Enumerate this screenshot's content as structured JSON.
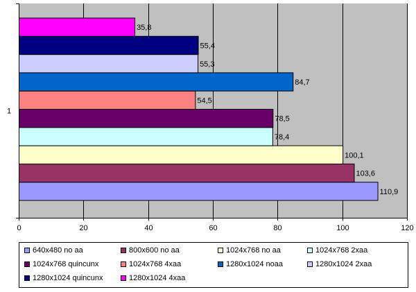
{
  "chart_data": {
    "type": "bar",
    "orientation": "horizontal",
    "categories": [
      "1"
    ],
    "xlim": [
      0,
      120
    ],
    "xticks": [
      0,
      20,
      40,
      60,
      80,
      100,
      120
    ],
    "grid": true,
    "legend_position": "bottom",
    "series": [
      {
        "name": "640x480 no aa",
        "values": [
          110.9
        ],
        "label": "110,9",
        "color": "#9999ff"
      },
      {
        "name": "800x600 no aa",
        "values": [
          103.6
        ],
        "label": "103,6",
        "color": "#993366"
      },
      {
        "name": "1024x768 no aa",
        "values": [
          100.1
        ],
        "label": "100,1",
        "color": "#ffffcc"
      },
      {
        "name": "1024x768 2xaa",
        "values": [
          78.4
        ],
        "label": "78,4",
        "color": "#ccffff"
      },
      {
        "name": "1024x768 quincunx",
        "values": [
          78.5
        ],
        "label": "78,5",
        "color": "#660066"
      },
      {
        "name": "1024x768 4xaa",
        "values": [
          54.5
        ],
        "label": "54,5",
        "color": "#ff8080"
      },
      {
        "name": "1280x1024 noaa",
        "values": [
          84.7
        ],
        "label": "84,7",
        "color": "#0066cc"
      },
      {
        "name": "1280x1024 2xaa",
        "values": [
          55.3
        ],
        "label": "55,3",
        "color": "#ccccff"
      },
      {
        "name": "1280x1024 quincunx",
        "values": [
          55.4
        ],
        "label": "55,4",
        "color": "#000080"
      },
      {
        "name": "1280x1024 4xaa",
        "values": [
          35.8
        ],
        "label": "35,8",
        "color": "#ff00ff"
      }
    ]
  }
}
